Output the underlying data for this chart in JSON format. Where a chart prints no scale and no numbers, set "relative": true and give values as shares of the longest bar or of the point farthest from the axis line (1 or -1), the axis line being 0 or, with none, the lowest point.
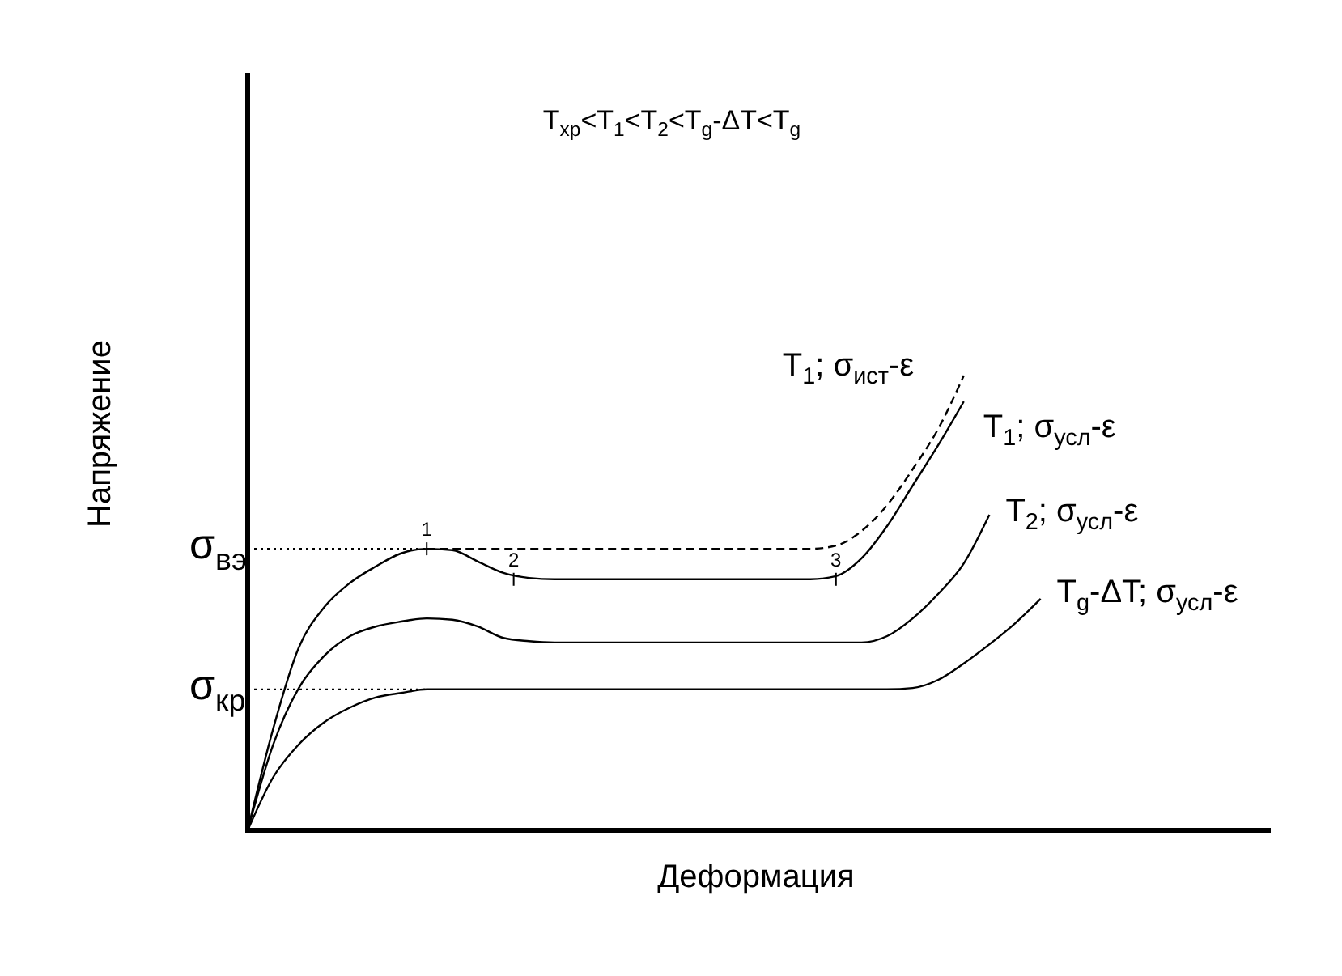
{
  "chart_data": {
    "type": "line",
    "relative": true,
    "title": "T$_{хр}$<T$_{1}$<T$_{2}$<T$_{g}$-ΔT<T$_{g}$",
    "xlabel": "Деформация",
    "ylabel": "Напряжение",
    "categories": [
      null,
      null,
      null,
      null,
      null,
      null,
      null,
      null,
      null,
      null,
      null,
      null,
      null,
      null,
      null,
      null,
      null,
      null,
      null,
      null,
      null,
      null,
      null,
      null,
      null,
      null,
      null,
      null,
      null,
      null,
      null,
      null,
      null,
      null,
      null,
      null,
      null,
      null,
      null,
      null,
      null
    ],
    "series": [
      {
        "name": "T$_{1}$; σ$_{ист}$-ε",
        "color": "#000000",
        "line_style": "dashed",
        "values": [
          null,
          null,
          null,
          null,
          null,
          null,
          null,
          0.619,
          0.619,
          0.619,
          0.619,
          0.619,
          0.619,
          0.619,
          0.619,
          0.619,
          0.619,
          0.619,
          0.619,
          0.619,
          0.619,
          0.619,
          0.619,
          0.626,
          0.658,
          0.715,
          0.794,
          0.883,
          1.0,
          null,
          null,
          null,
          null,
          null,
          null,
          null,
          null,
          null,
          null,
          null,
          null
        ]
      },
      {
        "name": "T$_{1}$; σ$_{усл}$-ε",
        "color": "#000000",
        "values": [
          0,
          0.224,
          0.402,
          0.491,
          0.544,
          0.58,
          0.609,
          0.619,
          0.616,
          0.591,
          0.566,
          0.555,
          0.552,
          0.552,
          0.552,
          0.552,
          0.552,
          0.552,
          0.552,
          0.552,
          0.552,
          0.552,
          0.552,
          0.559,
          0.598,
          0.669,
          0.758,
          0.847,
          0.943,
          null,
          null,
          null,
          null,
          null,
          null,
          null,
          null,
          null,
          null,
          null,
          null
        ]
      },
      {
        "name": "T$_{2}$; σ$_{усл}$-ε",
        "color": "#000000",
        "values": [
          0,
          0.189,
          0.313,
          0.384,
          0.427,
          0.448,
          0.459,
          0.466,
          0.463,
          0.448,
          0.423,
          0.416,
          0.413,
          0.413,
          0.413,
          0.413,
          0.413,
          0.413,
          0.413,
          0.413,
          0.413,
          0.413,
          0.413,
          0.413,
          0.413,
          0.427,
          0.466,
          0.52,
          0.587,
          0.694,
          null,
          null,
          null,
          null,
          null,
          null,
          null,
          null,
          null,
          null,
          null
        ]
      },
      {
        "name": "T$_{g}$-ΔT; σ$_{усл}$-ε",
        "color": "#000000",
        "values": [
          0,
          0.117,
          0.189,
          0.238,
          0.27,
          0.292,
          0.302,
          0.31,
          0.31,
          0.31,
          0.31,
          0.31,
          0.31,
          0.31,
          0.31,
          0.31,
          0.31,
          0.31,
          0.31,
          0.31,
          0.31,
          0.31,
          0.31,
          0.31,
          0.31,
          0.31,
          0.313,
          0.331,
          0.367,
          0.409,
          0.455,
          0.509,
          null,
          null,
          null,
          null,
          null,
          null,
          null,
          null,
          null
        ]
      }
    ],
    "ref_lines": [
      {
        "axis": "y",
        "value": 0.619,
        "label": "σ$_{вэ}$",
        "line_style": "dotted"
      },
      {
        "axis": "y",
        "value": 0.31,
        "label": "σ$_{кр}$",
        "line_style": "dotted"
      }
    ],
    "annotations": [
      {
        "text": "1",
        "y": 0.619
      },
      {
        "text": "2",
        "y": 0.552
      },
      {
        "text": "3",
        "y": 0.552
      }
    ]
  }
}
